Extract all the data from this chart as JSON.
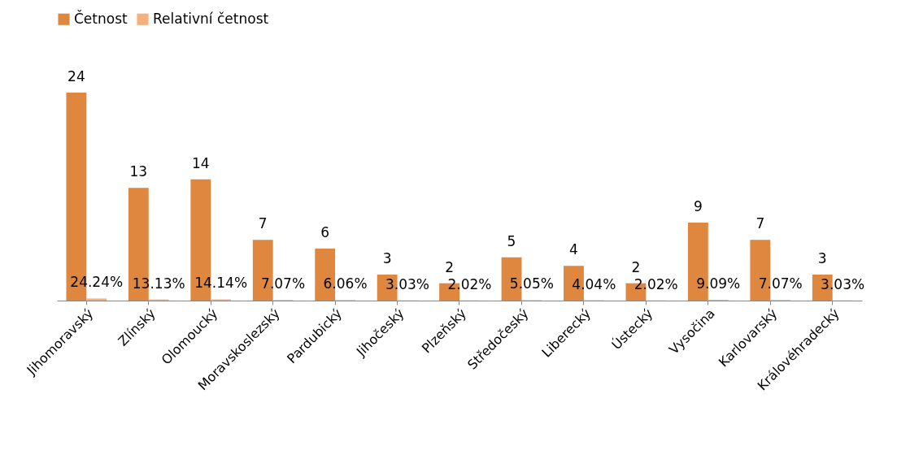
{
  "chart_data": {
    "type": "bar",
    "categories": [
      "Jihomoravský",
      "Zlínský",
      "Olomoucký",
      "Moravskoslezský",
      "Pardubický",
      "Jihočeský",
      "Plzeňský",
      "Středočeský",
      "Liberecký",
      "Ústecký",
      "Vysočina",
      "Karlovarský",
      "Královéhradecký"
    ],
    "series": [
      {
        "name": "Četnost",
        "color": "#e0873f",
        "values": [
          24,
          13,
          14,
          7,
          6,
          3,
          2,
          5,
          4,
          2,
          9,
          7,
          3
        ]
      },
      {
        "name": "Relativní četnost",
        "color": "#f5b07e",
        "values": [
          0.2424,
          0.1313,
          0.1414,
          0.0707,
          0.0606,
          0.0303,
          0.0202,
          0.0505,
          0.0404,
          0.0202,
          0.0909,
          0.0707,
          0.0303
        ],
        "value_labels": [
          "24.24%",
          "13.13%",
          "14.14%",
          "7.07%",
          "6.06%",
          "3.03%",
          "2.02%",
          "5.05%",
          "4.04%",
          "2.02%",
          "9.09%",
          "7.07%",
          "3.03%"
        ]
      }
    ],
    "data_labels": true,
    "legend": "top",
    "grid": false,
    "tick_labels": "x"
  }
}
